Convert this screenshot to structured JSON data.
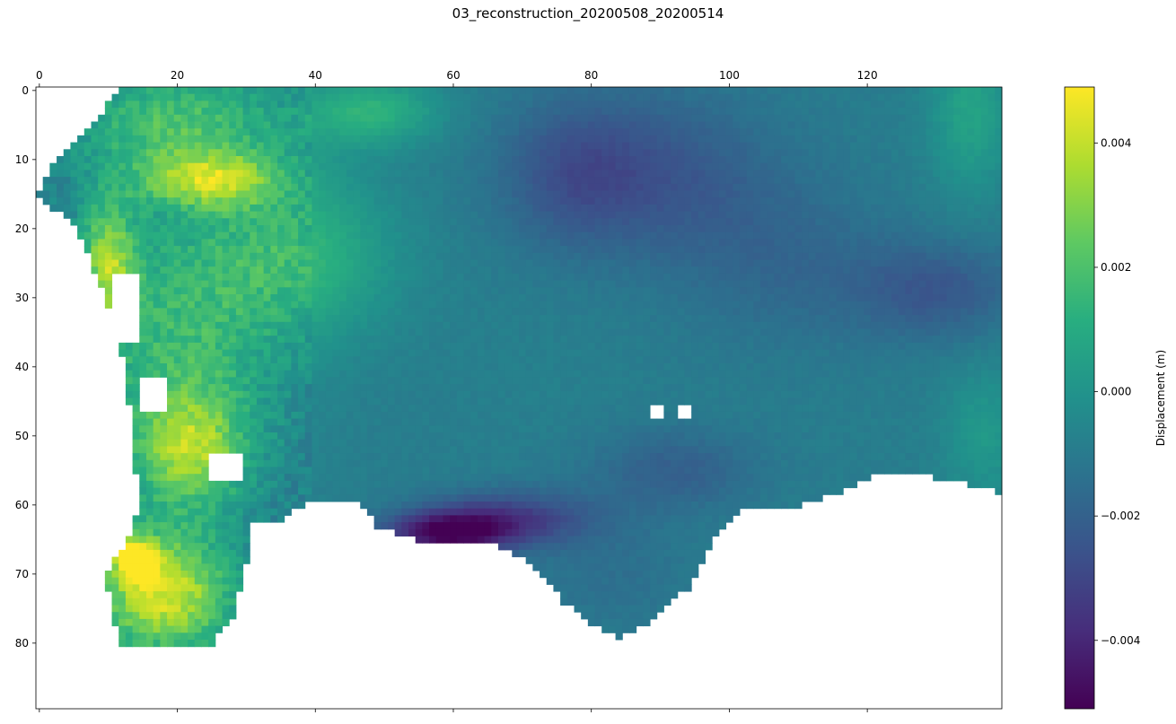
{
  "chart_data": {
    "type": "heatmap",
    "title": "03_reconstruction_20200508_20200514",
    "xlabel": "",
    "ylabel": "",
    "xlim": [
      -0.5,
      139.5
    ],
    "ylim": [
      89.5,
      -0.5
    ],
    "x_tick_position": "top",
    "x_ticks": [
      0,
      20,
      40,
      60,
      80,
      100,
      120
    ],
    "x_tick_labels": [
      "0",
      "20",
      "40",
      "60",
      "80",
      "100",
      "120"
    ],
    "y_ticks": [
      0,
      10,
      20,
      30,
      40,
      50,
      60,
      70,
      80
    ],
    "y_tick_labels": [
      "0",
      "10",
      "20",
      "30",
      "40",
      "50",
      "60",
      "70",
      "80"
    ],
    "grid": false,
    "colormap": "viridis",
    "colorbar": {
      "label": "Displacement (m)",
      "vmin": -0.0051,
      "vmax": 0.0049,
      "ticks": [
        -0.004,
        -0.002,
        0.0,
        0.002,
        0.004
      ],
      "tick_labels": [
        "−0.004",
        "−0.002",
        "0.000",
        "0.002",
        "0.004"
      ]
    },
    "grid_shape": {
      "rows": 90,
      "cols": 140
    },
    "valid_region": {
      "left_edge_col_by_row": [
        [
          0,
          12
        ],
        [
          5,
          8
        ],
        [
          10,
          3
        ],
        [
          15,
          0
        ],
        [
          20,
          6
        ],
        [
          30,
          10
        ],
        [
          40,
          13
        ],
        [
          50,
          14
        ],
        [
          60,
          15
        ],
        [
          66,
          13
        ],
        [
          70,
          10
        ],
        [
          75,
          11
        ],
        [
          80,
          12
        ]
      ],
      "right_edge_col_by_row": [
        [
          0,
          139
        ],
        [
          58,
          139
        ],
        [
          60,
          139
        ]
      ],
      "bottom_boundary": [
        [
          12,
          80
        ],
        [
          20,
          80
        ],
        [
          25,
          80
        ],
        [
          28,
          76
        ],
        [
          30,
          68
        ],
        [
          31,
          62
        ],
        [
          33,
          62
        ],
        [
          35,
          62
        ],
        [
          40,
          59
        ],
        [
          46,
          59
        ],
        [
          49,
          63
        ],
        [
          55,
          65
        ],
        [
          65,
          65
        ],
        [
          69,
          67
        ],
        [
          73,
          70
        ],
        [
          76,
          74
        ],
        [
          80,
          77
        ],
        [
          84,
          79
        ],
        [
          88,
          77
        ],
        [
          94,
          72
        ],
        [
          98,
          64
        ],
        [
          103,
          60
        ],
        [
          110,
          60
        ],
        [
          116,
          58
        ],
        [
          120,
          56
        ],
        [
          125,
          55
        ],
        [
          130,
          56
        ],
        [
          135,
          57
        ],
        [
          139,
          58
        ]
      ],
      "holes": [
        {
          "row": [
            53,
            56
          ],
          "col": [
            25,
            29
          ]
        },
        {
          "row": [
            27,
            36
          ],
          "col": [
            11,
            14
          ]
        },
        {
          "row": [
            42,
            46
          ],
          "col": [
            15,
            18
          ]
        },
        {
          "row": [
            46,
            47
          ],
          "col": [
            89,
            90
          ]
        },
        {
          "row": [
            46,
            47
          ],
          "col": [
            93,
            94
          ]
        }
      ]
    },
    "anomalies": [
      {
        "row": 73,
        "col": 18,
        "value": 0.0047,
        "extent": [
          9,
          10
        ]
      },
      {
        "row": 68,
        "col": 14,
        "value": 0.0049,
        "extent": [
          3,
          3
        ]
      },
      {
        "row": 25,
        "col": 10,
        "value": 0.0033,
        "extent": [
          9,
          4
        ]
      },
      {
        "row": 13,
        "col": 25,
        "value": 0.0031,
        "extent": [
          4,
          10
        ]
      },
      {
        "row": 52,
        "col": 22,
        "value": 0.0029,
        "extent": [
          8,
          8
        ]
      },
      {
        "row": 5,
        "col": 20,
        "value": 0.0022,
        "extent": [
          8,
          15
        ]
      },
      {
        "row": 38,
        "col": 20,
        "value": 0.0018,
        "extent": [
          20,
          14
        ]
      },
      {
        "row": 24,
        "col": 37,
        "value": 0.0016,
        "extent": [
          12,
          14
        ]
      },
      {
        "row": 3,
        "col": 48,
        "value": 0.0015,
        "extent": [
          5,
          10
        ]
      },
      {
        "row": 64,
        "col": 59,
        "value": -0.0051,
        "extent": [
          3,
          9
        ]
      },
      {
        "row": 62,
        "col": 68,
        "value": -0.0035,
        "extent": [
          4,
          12
        ]
      },
      {
        "row": 70,
        "col": 83,
        "value": -0.0015,
        "extent": [
          8,
          12
        ]
      },
      {
        "row": 12,
        "col": 88,
        "value": -0.0026,
        "extent": [
          12,
          18
        ]
      },
      {
        "row": 12,
        "col": 77,
        "value": -0.002,
        "extent": [
          10,
          10
        ]
      },
      {
        "row": 29,
        "col": 130,
        "value": -0.0025,
        "extent": [
          7,
          12
        ]
      },
      {
        "row": 55,
        "col": 92,
        "value": -0.0022,
        "extent": [
          6,
          12
        ]
      },
      {
        "row": 25,
        "col": 108,
        "value": -0.0018,
        "extent": [
          12,
          16
        ]
      },
      {
        "row": 40,
        "col": 72,
        "value": -0.0008,
        "extent": [
          12,
          14
        ]
      },
      {
        "row": 3,
        "col": 135,
        "value": 0.0008,
        "extent": [
          12,
          6
        ]
      },
      {
        "row": 50,
        "col": 137,
        "value": 0.0003,
        "extent": [
          10,
          6
        ]
      }
    ],
    "baseline_value": -0.0009
  }
}
